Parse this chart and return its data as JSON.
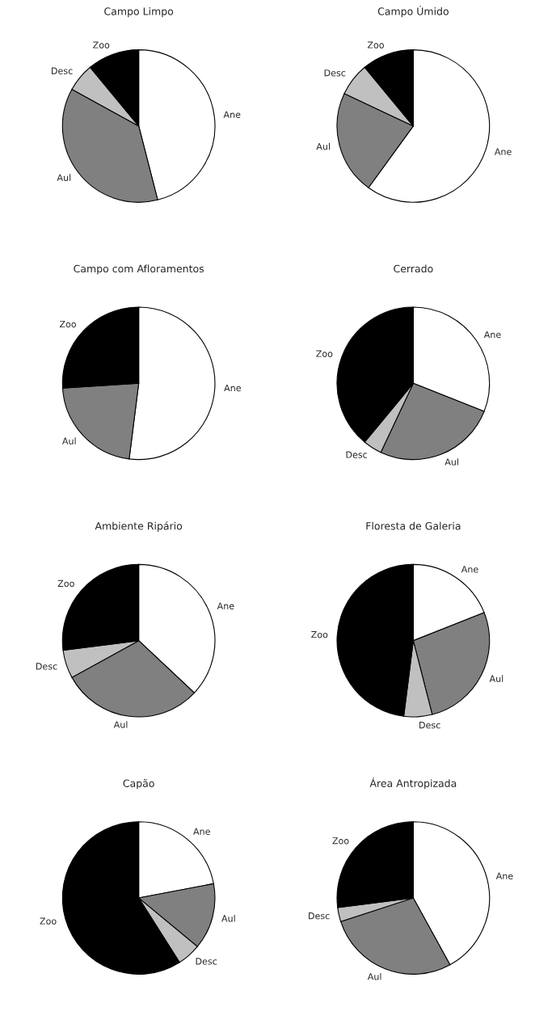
{
  "chart_data": [
    {
      "type": "pie",
      "title": "Campo Limpo",
      "categories": [
        "Ane",
        "Aul",
        "Desc",
        "Zoo"
      ],
      "values": [
        46,
        37,
        6,
        11
      ],
      "colors": [
        "#ffffff",
        "#808080",
        "#c0c0c0",
        "#000000"
      ]
    },
    {
      "type": "pie",
      "title": "Campo Úmido",
      "categories": [
        "Ane",
        "Aul",
        "Desc",
        "Zoo"
      ],
      "values": [
        60,
        22,
        7,
        11
      ],
      "colors": [
        "#ffffff",
        "#808080",
        "#c0c0c0",
        "#000000"
      ]
    },
    {
      "type": "pie",
      "title": "Campo com Afloramentos",
      "categories": [
        "Ane",
        "Aul",
        "Zoo"
      ],
      "values": [
        52,
        22,
        26
      ],
      "colors": [
        "#ffffff",
        "#808080",
        "#000000"
      ]
    },
    {
      "type": "pie",
      "title": "Cerrado",
      "categories": [
        "Ane",
        "Aul",
        "Desc",
        "Zoo"
      ],
      "values": [
        31,
        26,
        4,
        39
      ],
      "colors": [
        "#ffffff",
        "#808080",
        "#c0c0c0",
        "#000000"
      ]
    },
    {
      "type": "pie",
      "title": "Ambiente Ripário",
      "categories": [
        "Ane",
        "Aul",
        "Desc",
        "Zoo"
      ],
      "values": [
        37,
        30,
        6,
        27
      ],
      "colors": [
        "#ffffff",
        "#808080",
        "#c0c0c0",
        "#000000"
      ]
    },
    {
      "type": "pie",
      "title": "Floresta de Galeria",
      "categories": [
        "Ane",
        "Aul",
        "Desc",
        "Zoo"
      ],
      "values": [
        19,
        27,
        6,
        48
      ],
      "colors": [
        "#ffffff",
        "#808080",
        "#c0c0c0",
        "#000000"
      ]
    },
    {
      "type": "pie",
      "title": "Capão",
      "categories": [
        "Ane",
        "Aul",
        "Desc",
        "Zoo"
      ],
      "values": [
        22,
        14,
        5,
        59
      ],
      "colors": [
        "#ffffff",
        "#808080",
        "#c0c0c0",
        "#000000"
      ]
    },
    {
      "type": "pie",
      "title": "Área Antropizada",
      "categories": [
        "Ane",
        "Aul",
        "Desc",
        "Zoo"
      ],
      "values": [
        42,
        28,
        3,
        27
      ],
      "colors": [
        "#ffffff",
        "#808080",
        "#c0c0c0",
        "#000000"
      ]
    }
  ]
}
